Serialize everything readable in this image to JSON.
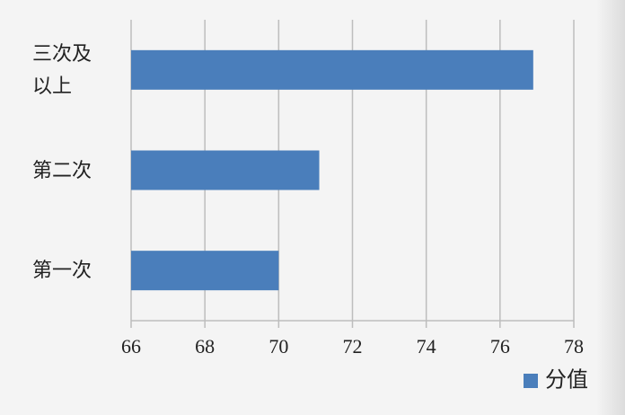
{
  "chart_data": {
    "type": "bar",
    "orientation": "horizontal",
    "categories": [
      "三次及以上",
      "第二次",
      "第一次"
    ],
    "series": [
      {
        "name": "分值",
        "color": "#4a7ebb",
        "values": [
          76.9,
          71.1,
          70.0
        ]
      }
    ],
    "xlim": [
      66,
      78
    ],
    "xticks": [
      66,
      68,
      70,
      72,
      74,
      76,
      78
    ],
    "grid": true,
    "legend": "bottom-right"
  }
}
